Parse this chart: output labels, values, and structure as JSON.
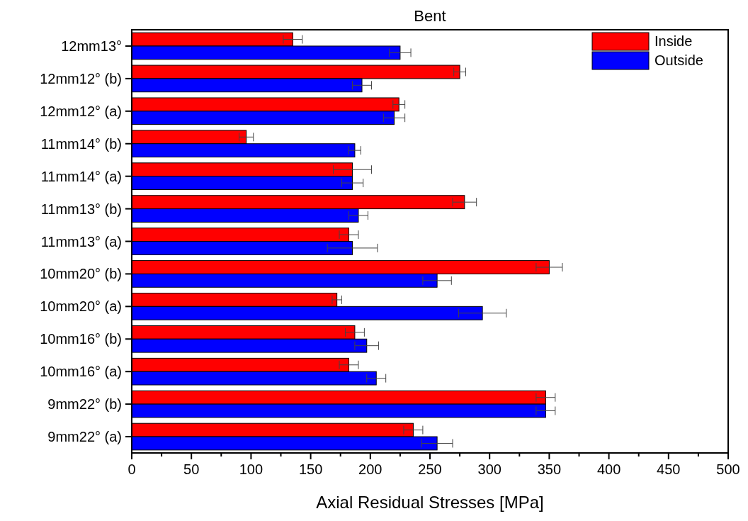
{
  "chart_data": {
    "type": "bar",
    "orientation": "horizontal",
    "title": "Bent",
    "xlabel": "Axial Residual Stresses [MPa]",
    "categories": [
      "12mm13°",
      "12mm12° (b)",
      "12mm12° (a)",
      "11mm14° (b)",
      "11mm14° (a)",
      "11mm13° (b)",
      "11mm13° (a)",
      "10mm20° (b)",
      "10mm20° (a)",
      "10mm16° (b)",
      "10mm16° (a)",
      "9mm22° (b)",
      "9mm22° (a)"
    ],
    "series": [
      {
        "name": "Inside",
        "color": "#ff0000",
        "values": [
          135,
          275,
          224,
          96,
          185,
          279,
          182,
          350,
          172,
          187,
          182,
          347,
          236
        ],
        "errors": [
          8,
          5,
          5,
          6,
          16,
          10,
          8,
          11,
          4,
          8,
          8,
          8,
          8
        ]
      },
      {
        "name": "Outside",
        "color": "#0000ff",
        "values": [
          225,
          193,
          220,
          187,
          185,
          190,
          185,
          256,
          294,
          197,
          205,
          347,
          256
        ],
        "errors": [
          9,
          8,
          9,
          5,
          9,
          8,
          21,
          12,
          20,
          10,
          8,
          8,
          13
        ]
      }
    ],
    "xlim": [
      0,
      500
    ],
    "xticks": [
      0,
      {
        "value": 25,
        "label": null
      },
      50,
      {
        "value": 75,
        "label": null
      },
      100,
      {
        "value": 125,
        "label": null
      },
      150,
      {
        "value": 175,
        "label": null
      },
      200,
      {
        "value": 225,
        "label": null
      },
      250,
      {
        "value": 275,
        "label": null
      },
      300,
      {
        "value": 325,
        "label": null
      },
      350,
      {
        "value": 375,
        "label": null
      },
      400,
      {
        "value": 425,
        "label": null
      },
      450,
      {
        "value": 475,
        "label": null
      },
      500
    ],
    "legend": "top right"
  }
}
